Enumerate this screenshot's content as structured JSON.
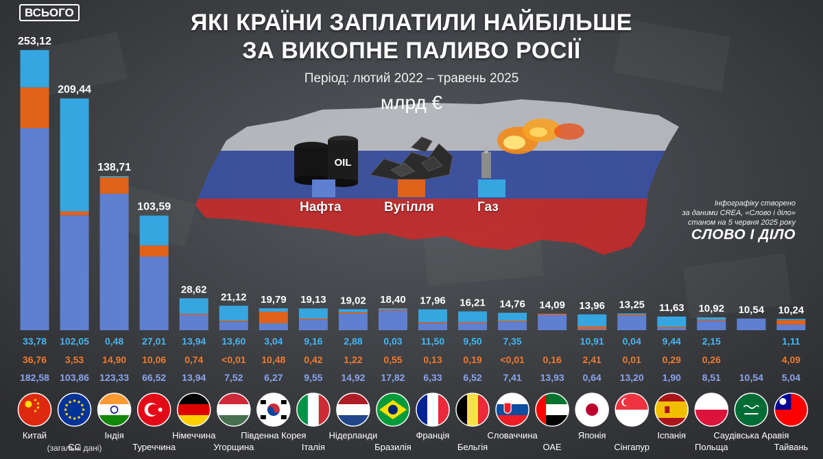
{
  "header": {
    "title_line1": "ЯКІ КРАЇНИ ЗАПЛАТИЛИ НАЙБІЛЬШЕ",
    "title_line2": "ЗА ВИКОПНЕ ПАЛИВО РОСІЇ",
    "period": "Період: лютий 2022 – травень 2025",
    "unit": "млрд €"
  },
  "badge": {
    "total_label": "ВСЬОГО"
  },
  "credit": {
    "line1": "Інфографіку створено",
    "line2": "за даними CREA, «Слово і діло»",
    "line3": "станом на 5 червня 2025 року",
    "brand": "СЛОВО І ДІЛО"
  },
  "legend": [
    {
      "name": "Нафта",
      "color": "#5f7fd1"
    },
    {
      "name": "Вугілля",
      "color": "#e0621b"
    },
    {
      "name": "Газ",
      "color": "#36a6e1"
    }
  ],
  "icons": [
    "oil-barrel-icon",
    "coal-pile-icon",
    "gas-flare-icon"
  ],
  "colors": {
    "oil": "#5f7fd1",
    "coal": "#e0621b",
    "gas": "#36a6e1",
    "oil_text": "#8aa4ef",
    "coal_text": "#f07a2e",
    "gas_text": "#45b6f0"
  },
  "chart_data": {
    "type": "bar",
    "stacked": true,
    "ylim": [
      0,
      260
    ],
    "categories": [
      "Китай",
      "ЄС",
      "Індія",
      "Туреччина",
      "Німеччина",
      "Угорщина",
      "Південна Корея",
      "Італія",
      "Нідерланди",
      "Бразилія",
      "Франція",
      "Бельгія",
      "Словаччина",
      "ОАЕ",
      "Японія",
      "Сінгапур",
      "Іспанія",
      "Польща",
      "Саудівська Аравія",
      "Тайвань"
    ],
    "category_notes": {
      "ЄС": "(загальні дані)"
    },
    "totals": [
      "253,12",
      "209,44",
      "138,71",
      "103,59",
      "28,62",
      "21,12",
      "19,79",
      "19,13",
      "19,02",
      "18,40",
      "17,96",
      "16,21",
      "14,76",
      "14,09",
      "13,96",
      "13,25",
      "11,63",
      "10,92",
      "10,54",
      "10,24"
    ],
    "total_values": [
      253.12,
      209.44,
      138.71,
      103.59,
      28.62,
      21.12,
      19.79,
      19.13,
      19.02,
      18.4,
      17.96,
      16.21,
      14.76,
      14.09,
      13.96,
      13.25,
      11.63,
      10.92,
      10.54,
      10.24
    ],
    "series": [
      {
        "name": "Нафта",
        "values": [
          182.58,
          103.86,
          123.33,
          66.52,
          13.94,
          7.52,
          6.27,
          9.55,
          14.92,
          17.82,
          6.33,
          6.52,
          7.41,
          13.93,
          0.64,
          13.2,
          1.9,
          8.51,
          10.54,
          5.04
        ],
        "labels": [
          "182,58",
          "103,86",
          "123,33",
          "66,52",
          "13,94",
          "7,52",
          "6,27",
          "9,55",
          "14,92",
          "17,82",
          "6,33",
          "6,52",
          "7,41",
          "13,93",
          "0,64",
          "13,20",
          "1,90",
          "8,51",
          "10,54",
          "5,04"
        ]
      },
      {
        "name": "Вугілля",
        "values": [
          36.76,
          3.53,
          14.9,
          10.06,
          0.74,
          0.01,
          10.48,
          0.42,
          1.22,
          0.55,
          0.13,
          0.19,
          0.01,
          0.16,
          2.41,
          0.01,
          0.29,
          0.26,
          0,
          4.09
        ],
        "labels": [
          "36,76",
          "3,53",
          "14,90",
          "10,06",
          "0,74",
          "<0,01",
          "10,48",
          "0,42",
          "1,22",
          "0,55",
          "0,13",
          "0,19",
          "<0,01",
          "0,16",
          "2,41",
          "0,01",
          "0,29",
          "0,26",
          "",
          "4,09"
        ]
      },
      {
        "name": "Газ",
        "values": [
          33.78,
          102.05,
          0.48,
          27.01,
          13.94,
          13.6,
          3.04,
          9.16,
          2.88,
          0.03,
          11.5,
          9.5,
          7.35,
          0,
          10.91,
          0.04,
          9.44,
          2.15,
          0,
          1.11
        ],
        "labels": [
          "33,78",
          "102,05",
          "0,48",
          "27,01",
          "13,94",
          "13,60",
          "3,04",
          "9,16",
          "2,88",
          "0,03",
          "11,50",
          "9,50",
          "7,35",
          "",
          "10,91",
          "0,04",
          "9,44",
          "2,15",
          "",
          "1,11"
        ]
      }
    ],
    "flags": [
      "china-flag-icon",
      "eu-flag-icon",
      "india-flag-icon",
      "turkey-flag-icon",
      "germany-flag-icon",
      "hungary-flag-icon",
      "south-korea-flag-icon",
      "italy-flag-icon",
      "netherlands-flag-icon",
      "brazil-flag-icon",
      "france-flag-icon",
      "belgium-flag-icon",
      "slovakia-flag-icon",
      "uae-flag-icon",
      "japan-flag-icon",
      "singapore-flag-icon",
      "spain-flag-icon",
      "poland-flag-icon",
      "saudi-arabia-flag-icon",
      "taiwan-flag-icon"
    ]
  }
}
